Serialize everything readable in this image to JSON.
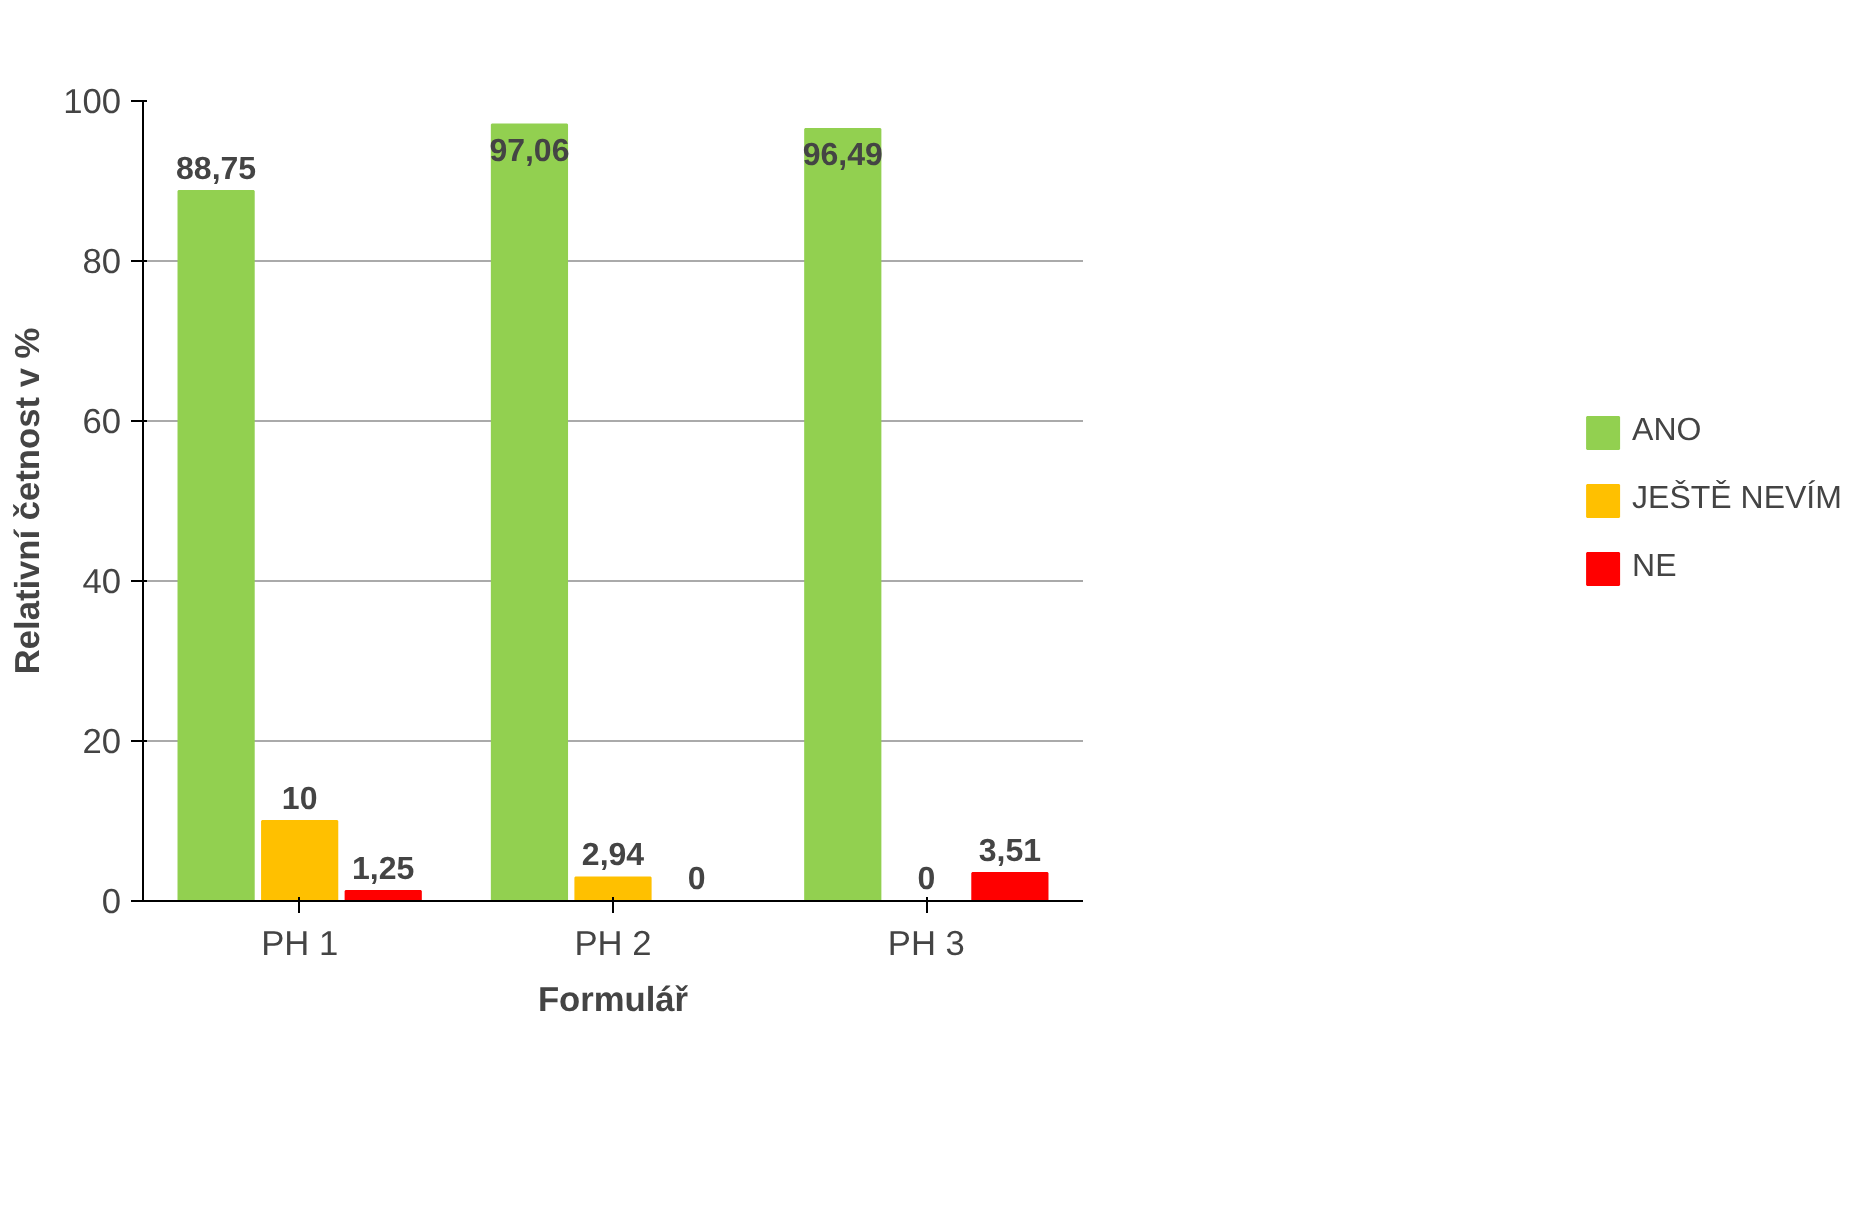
{
  "chart_data": {
    "type": "bar",
    "xlabel": "Formulář",
    "ylabel": "Relativní četnost v %",
    "categories": [
      "PH 1",
      "PH 2",
      "PH 3"
    ],
    "series": [
      {
        "name": "ANO",
        "color": "#92d050",
        "values": [
          88.75,
          97.06,
          96.49
        ],
        "value_labels": [
          "88,75",
          "97,06",
          "96,49"
        ]
      },
      {
        "name": "JEŠTĚ NEVÍM",
        "color": "#ffc000",
        "values": [
          10,
          2.94,
          0
        ],
        "value_labels": [
          "10",
          "2,94",
          "0"
        ]
      },
      {
        "name": "NE",
        "color": "#ff0000",
        "values": [
          1.25,
          0,
          3.51
        ],
        "value_labels": [
          "1,25",
          "0",
          "3,51"
        ]
      }
    ],
    "ylim": [
      0,
      100
    ],
    "yticks": [
      0,
      20,
      40,
      60,
      80,
      100
    ],
    "grid": "y",
    "legend": "right"
  }
}
